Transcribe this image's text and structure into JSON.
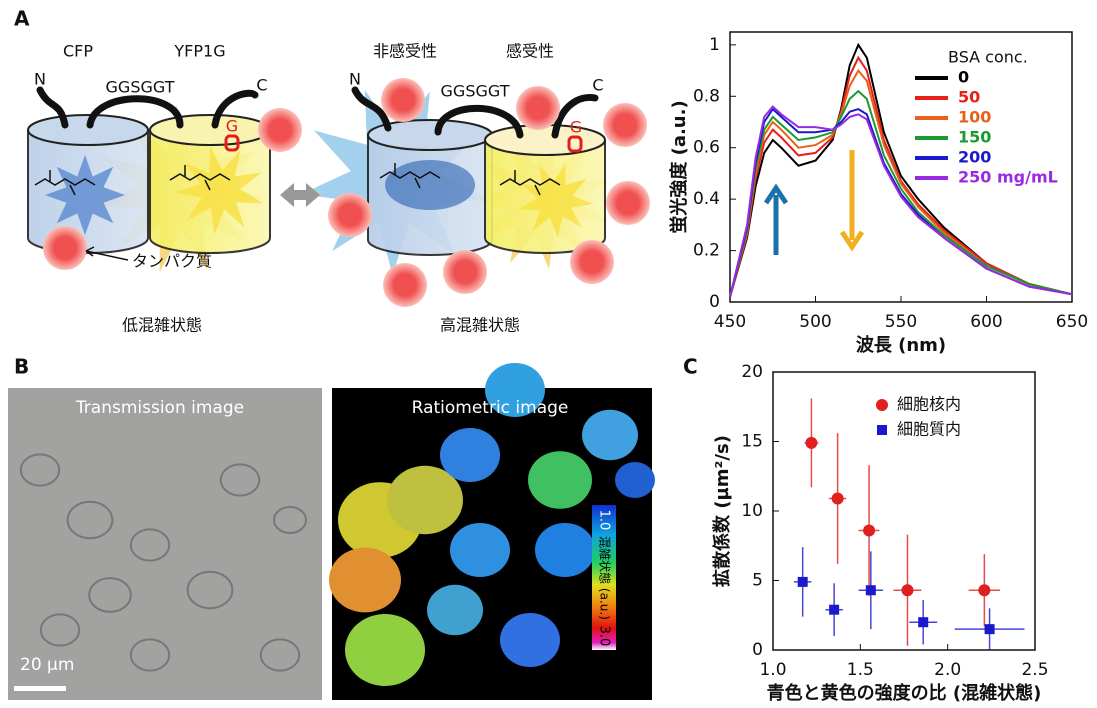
{
  "panel_labels": [
    "A",
    "B",
    "C"
  ],
  "diagram": {
    "low": {
      "cfp": "CFP",
      "yfp": "YFP1G",
      "n": "N",
      "linker": "GGSGGT",
      "c": "C",
      "g": "G",
      "protein": "タンパク質",
      "state": "低混雑状態"
    },
    "high": {
      "insensitive": "非感受性",
      "sensitive": "感受性",
      "n": "N",
      "linker": "GGSGGT",
      "c": "C",
      "g": "G",
      "state": "高混雑状態"
    }
  },
  "images": {
    "transmission": "Transmission image",
    "ratiometric": "Ratiometric image",
    "scale": "20 µm",
    "colorbar_top": "1.0",
    "colorbar_label": "混雑状態 (a.u.)",
    "colorbar_bottom": "3.0"
  },
  "chart_data": [
    {
      "type": "line",
      "xlabel": "波長 (nm)",
      "ylabel": "蛍光強度 (a.u.)",
      "legend_title": "BSA conc.",
      "x": [
        450,
        460,
        465,
        470,
        475,
        480,
        490,
        500,
        510,
        515,
        520,
        525,
        530,
        540,
        550,
        560,
        575,
        600,
        625,
        650
      ],
      "series": [
        {
          "name": "0",
          "color": "#000000",
          "values": [
            0.02,
            0.25,
            0.45,
            0.58,
            0.63,
            0.6,
            0.53,
            0.55,
            0.63,
            0.75,
            0.92,
            1.0,
            0.95,
            0.66,
            0.49,
            0.4,
            0.29,
            0.15,
            0.07,
            0.03
          ]
        },
        {
          "name": "50",
          "color": "#e8201a",
          "values": [
            0.02,
            0.26,
            0.48,
            0.62,
            0.67,
            0.64,
            0.57,
            0.58,
            0.64,
            0.74,
            0.88,
            0.95,
            0.9,
            0.63,
            0.47,
            0.38,
            0.28,
            0.15,
            0.07,
            0.03
          ]
        },
        {
          "name": "100",
          "color": "#e8601a",
          "values": [
            0.02,
            0.27,
            0.5,
            0.65,
            0.7,
            0.67,
            0.6,
            0.61,
            0.65,
            0.73,
            0.84,
            0.9,
            0.86,
            0.61,
            0.46,
            0.37,
            0.27,
            0.14,
            0.07,
            0.03
          ]
        },
        {
          "name": "150",
          "color": "#1a9a30",
          "values": [
            0.02,
            0.28,
            0.52,
            0.67,
            0.72,
            0.69,
            0.63,
            0.64,
            0.66,
            0.72,
            0.79,
            0.82,
            0.79,
            0.57,
            0.44,
            0.35,
            0.26,
            0.14,
            0.07,
            0.03
          ]
        },
        {
          "name": "200",
          "color": "#1a1acc",
          "values": [
            0.02,
            0.29,
            0.54,
            0.7,
            0.75,
            0.72,
            0.66,
            0.66,
            0.67,
            0.7,
            0.74,
            0.75,
            0.73,
            0.54,
            0.42,
            0.34,
            0.25,
            0.13,
            0.06,
            0.03
          ]
        },
        {
          "name": "250 mg/mL",
          "color": "#9a2ae0",
          "values": [
            0.02,
            0.3,
            0.56,
            0.72,
            0.76,
            0.73,
            0.68,
            0.68,
            0.67,
            0.69,
            0.72,
            0.73,
            0.71,
            0.53,
            0.41,
            0.33,
            0.25,
            0.13,
            0.06,
            0.03
          ]
        }
      ],
      "xlim": [
        450,
        650
      ],
      "xticks": [
        450,
        500,
        550,
        600,
        650
      ],
      "ylim": [
        0,
        1.05
      ],
      "yticks": [
        0,
        0.2,
        0.4,
        0.6,
        0.8,
        1
      ]
    },
    {
      "type": "scatter",
      "xlabel": "青色と黄色の強度の比 (混雑状態)",
      "ylabel": "拡散係数 (µm²/s)",
      "series": [
        {
          "name": "細胞核内",
          "color": "#e02020",
          "marker": "circle",
          "x": [
            1.22,
            1.37,
            1.55,
            1.77,
            2.21
          ],
          "values": [
            14.9,
            10.9,
            8.6,
            4.3,
            4.3
          ],
          "x_errors": [
            0.04,
            0.05,
            0.06,
            0.08,
            0.09
          ],
          "y_errors": [
            3.2,
            4.7,
            4.7,
            4.0,
            2.6
          ]
        },
        {
          "name": "細胞質内",
          "color": "#1a1acc",
          "marker": "square",
          "x": [
            1.17,
            1.35,
            1.56,
            1.86,
            2.24
          ],
          "values": [
            4.9,
            2.9,
            4.3,
            2.0,
            1.5
          ],
          "x_errors": [
            0.05,
            0.05,
            0.07,
            0.08,
            0.2
          ],
          "y_errors": [
            2.5,
            1.9,
            2.8,
            1.6,
            1.5
          ]
        }
      ],
      "xlim": [
        1,
        2.5
      ],
      "xticks": [
        {
          "value": 1,
          "label": "1.0"
        },
        {
          "value": 1.5,
          "label": "1.5"
        },
        {
          "value": 2,
          "label": "2.0"
        },
        {
          "value": 2.5,
          "label": "2.5"
        }
      ],
      "ylim": [
        0,
        20
      ],
      "yticks": [
        0,
        5,
        10,
        15,
        20
      ]
    }
  ]
}
